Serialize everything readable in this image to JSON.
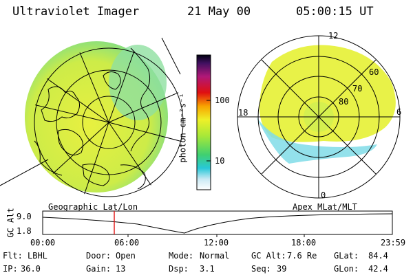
{
  "header": {
    "title": "Ultraviolet Imager",
    "date": "21 May 00",
    "time": "05:00:15 UT"
  },
  "colorbar": {
    "label": "photon cm⁻²s⁻¹",
    "ticks": [
      "100",
      "10"
    ]
  },
  "left_map": {
    "caption": "Geographic Lat/Lon"
  },
  "right_map": {
    "caption": "Apex MLat/MLT",
    "mlt_labels": [
      "12",
      "18",
      "6",
      "0"
    ],
    "lat_labels": [
      "60",
      "70",
      "80"
    ]
  },
  "timeline": {
    "axis_label": "GC Alt",
    "y_ticks": [
      "9.0",
      "1.8"
    ],
    "x_ticks": [
      "00:00",
      "06:00",
      "12:00",
      "18:00",
      "23:59"
    ]
  },
  "info": {
    "row1": [
      {
        "label": "Flt:",
        "value": "LBHL"
      },
      {
        "label": "Door:",
        "value": "Open"
      },
      {
        "label": "Mode:",
        "value": "Normal"
      },
      {
        "label": "GC Alt:",
        "value": "7.6 Re"
      },
      {
        "label": "GLat:",
        "value": "84.4"
      }
    ],
    "row2": [
      {
        "label": "IP:",
        "value": "36.0"
      },
      {
        "label": "Gain:",
        "value": "13"
      },
      {
        "label": "Dsp:",
        "value": "3.1"
      },
      {
        "label": "Seq:",
        "value": "39"
      },
      {
        "label": "GLon:",
        "value": "42.4"
      }
    ]
  },
  "colors": {
    "auroral_main": "#d6ef55",
    "auroral_edge": "#7ee08a",
    "marker": "#e01010"
  }
}
